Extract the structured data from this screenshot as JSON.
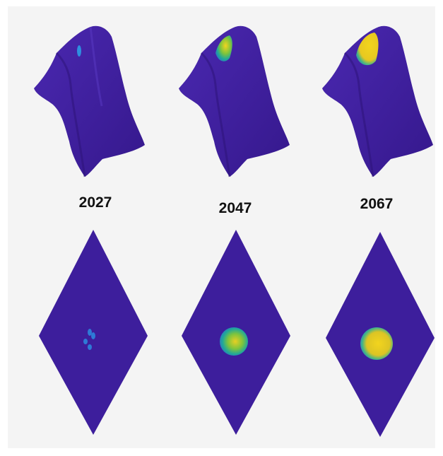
{
  "figure": {
    "columns": [
      {
        "year_label": "2027",
        "hotspot_level": "low"
      },
      {
        "year_label": "2047",
        "hotspot_level": "medium"
      },
      {
        "year_label": "2067",
        "hotspot_level": "high"
      }
    ],
    "colors": {
      "background": "#f4f4f4",
      "surface": "#3f1f9e",
      "low": "#2e6fc9",
      "mid": "#20a89a",
      "high": "#f2d41e"
    },
    "rows": [
      "3d-surface-view",
      "top-down-view"
    ]
  }
}
